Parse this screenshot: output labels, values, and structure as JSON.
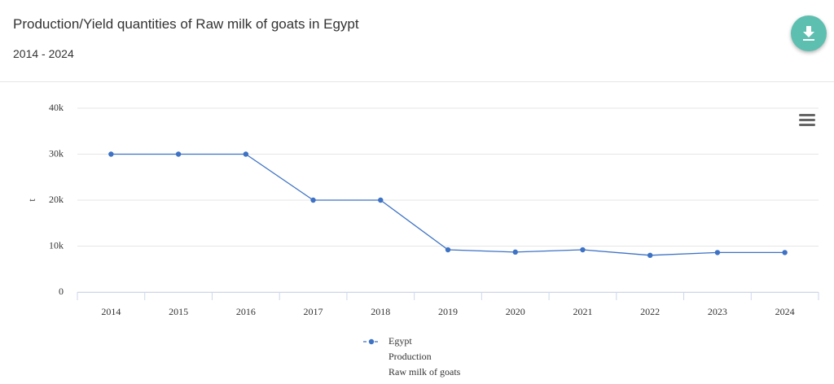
{
  "header": {
    "title": "Production/Yield quantities of Raw milk of goats in Egypt",
    "subtitle": "2014 - 2024"
  },
  "chart_data": {
    "type": "line",
    "y_label": "t",
    "categories": [
      "2014",
      "2015",
      "2016",
      "2017",
      "2018",
      "2019",
      "2020",
      "2021",
      "2022",
      "2023",
      "2024"
    ],
    "series": [
      {
        "name": "Egypt",
        "element": "Production",
        "item": "Raw milk of goats",
        "color": "#3d72c4",
        "values": [
          30000,
          30000,
          30000,
          20000,
          20000,
          9200,
          8700,
          9200,
          8000,
          8600,
          8600
        ]
      }
    ],
    "ylim": [
      0,
      40000
    ],
    "yticks": [
      0,
      {
        "value": 10000,
        "label": "10k"
      },
      {
        "value": 20000,
        "label": "20k"
      },
      {
        "value": 30000,
        "label": "30k"
      },
      {
        "value": 40000,
        "label": "40k"
      }
    ],
    "grid": true
  }
}
